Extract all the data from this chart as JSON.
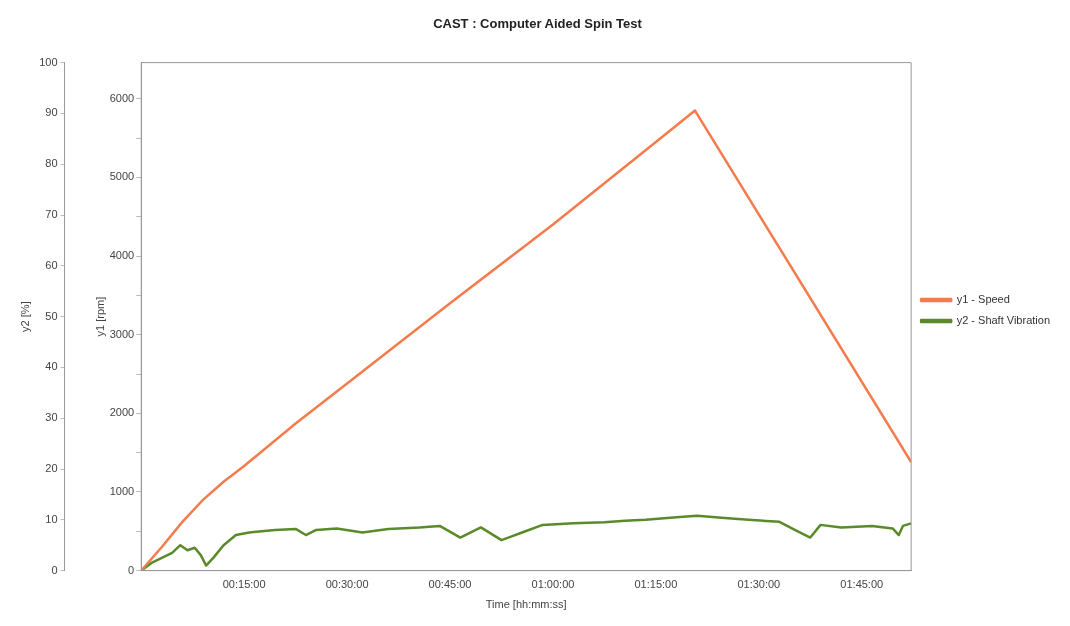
{
  "chart_data": {
    "type": "line",
    "title": "CAST : Computer Aided Spin Test",
    "xlabel": "Time [hh:mm:ss]",
    "ylabel": "y1 [rpm]",
    "y2label": "y2 [%]",
    "xlim": [
      0,
      1.87
    ],
    "xticks": [
      {
        "value": 0.25,
        "label": "00:15:00"
      },
      {
        "value": 0.5,
        "label": "00:30:00"
      },
      {
        "value": 0.75,
        "label": "00:45:00"
      },
      {
        "value": 1.0,
        "label": "01:00:00"
      },
      {
        "value": 1.25,
        "label": "01:15:00"
      },
      {
        "value": 1.5,
        "label": "01:30:00"
      },
      {
        "value": 1.75,
        "label": "01:45:00"
      }
    ],
    "ylim": [
      0,
      6460
    ],
    "yticks": [
      0,
      {
        "value": 500,
        "label": null
      },
      1000,
      {
        "value": 1500,
        "label": null
      },
      2000,
      {
        "value": 2500,
        "label": null
      },
      3000,
      {
        "value": 3500,
        "label": null
      },
      4000,
      {
        "value": 4500,
        "label": null
      },
      5000,
      {
        "value": 5500,
        "label": null
      },
      6000
    ],
    "y2lim": [
      0,
      100
    ],
    "y2ticks": [
      0,
      10,
      20,
      30,
      40,
      50,
      60,
      70,
      80,
      90,
      100
    ],
    "grid": false,
    "legend": "right",
    "marker": "none",
    "line_style": "solid",
    "series": [
      {
        "name": "y1 - Speed",
        "color": "#f47c4c",
        "x": [
          0,
          0.05,
          0.1,
          0.15,
          0.2,
          0.25,
          0.375,
          0.5,
          0.75,
          1.0,
          1.25,
          1.345,
          1.87
        ],
        "values": [
          0,
          300,
          620,
          900,
          1130,
          1330,
          1870,
          2380,
          3400,
          4400,
          5450,
          5850,
          1380
        ]
      },
      {
        "name": "y2 - Shaft Vibration",
        "color": "#5a8a2a",
        "axis": "y2",
        "x": [
          0,
          0.025,
          0.05,
          0.075,
          0.095,
          0.1125,
          0.13,
          0.145,
          0.1575,
          0.175,
          0.2,
          0.23,
          0.2625,
          0.325,
          0.375,
          0.4,
          0.425,
          0.475,
          0.5375,
          0.6,
          0.675,
          0.725,
          0.775,
          0.825,
          0.875,
          0.925,
          0.975,
          1.05,
          1.125,
          1.175,
          1.225,
          1.3,
          1.35,
          1.425,
          1.475,
          1.55,
          1.5875,
          1.625,
          1.65,
          1.7,
          1.775,
          1.825,
          1.84,
          1.85,
          1.87
        ],
        "values": [
          0,
          1.5,
          2.5,
          3.5,
          5,
          4,
          4.5,
          3,
          1,
          2.5,
          5,
          7,
          7.5,
          8,
          8.2,
          7,
          8,
          8.3,
          7.5,
          8.2,
          8.5,
          8.8,
          6.5,
          8.5,
          6,
          7.5,
          9,
          9.3,
          9.5,
          9.8,
          10,
          10.5,
          10.8,
          10.3,
          10,
          9.6,
          8,
          6.5,
          9,
          8.5,
          8.8,
          8.3,
          7,
          8.8,
          9.3
        ]
      }
    ]
  }
}
